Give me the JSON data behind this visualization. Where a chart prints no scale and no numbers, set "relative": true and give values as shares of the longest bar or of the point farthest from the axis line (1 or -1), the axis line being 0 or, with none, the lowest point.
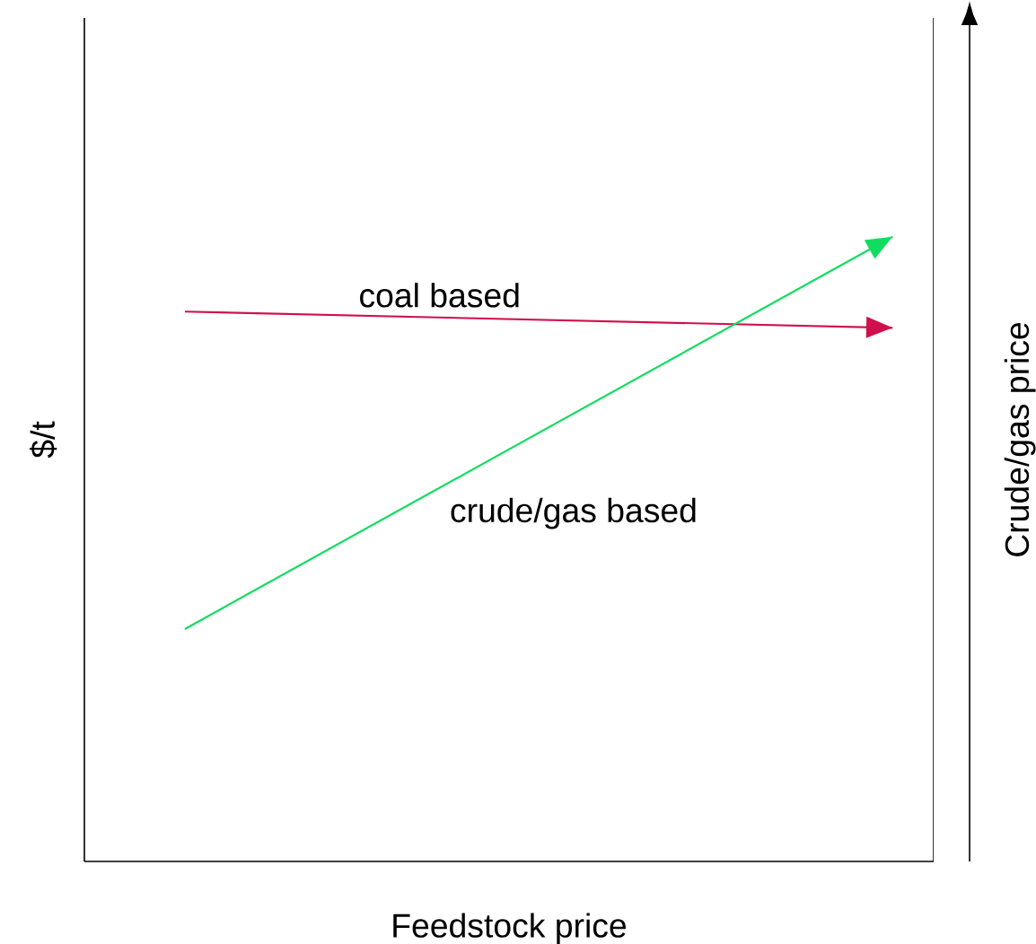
{
  "chart_data": {
    "type": "line",
    "relative": true,
    "categories": [
      null,
      null
    ],
    "xlabel": "Feedstock price",
    "ylabel": "$/t",
    "y2label": "Crude/gas price",
    "line_style": "solid",
    "series": [
      {
        "name": "coal based",
        "color": "#d0104c",
        "values": [
          0.88,
          0.854
        ]
      },
      {
        "name": "crude/gas based",
        "color": "#10dd60",
        "values": [
          0.372,
          1
        ]
      }
    ]
  }
}
